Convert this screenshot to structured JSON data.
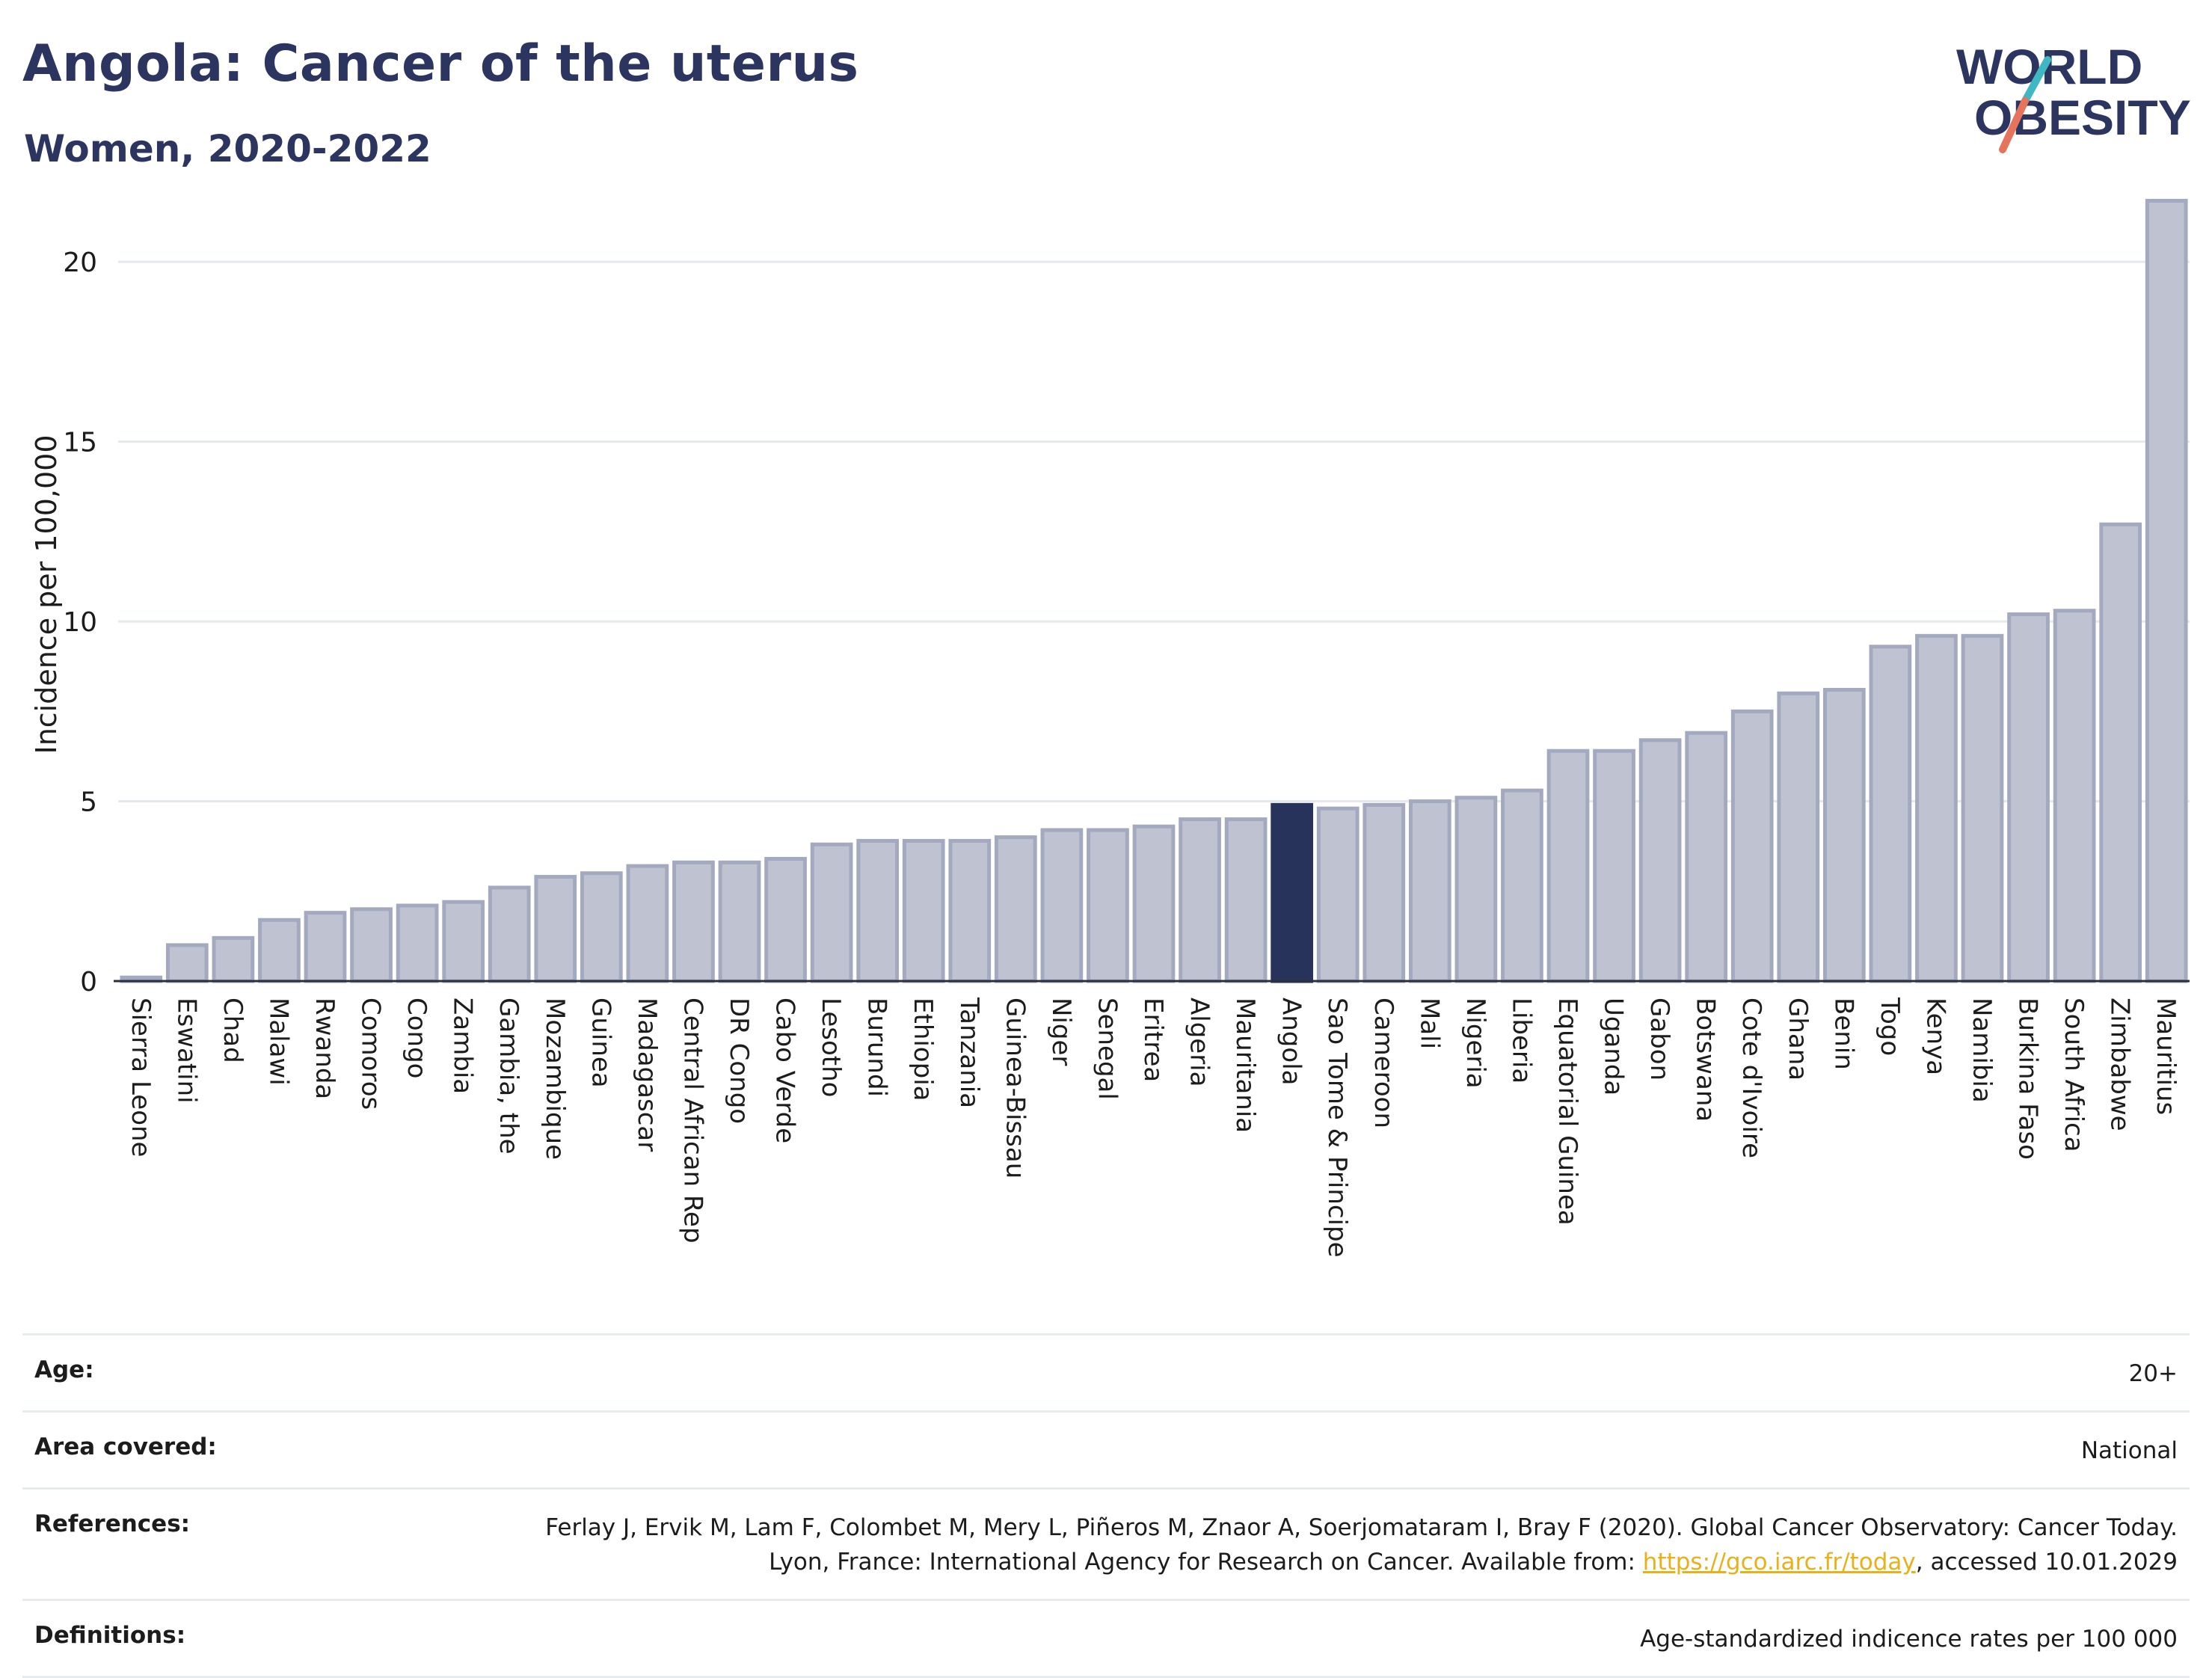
{
  "header": {
    "title": "Angola: Cancer of the uterus",
    "subtitle": "Women, 2020-2022"
  },
  "logo": {
    "line1": "WORLD",
    "line2": "OBESITY",
    "accent_colors": [
      "#3fb8c4",
      "#e6735c"
    ]
  },
  "colors": {
    "bar_fill": "#bfc3d1",
    "bar_stroke": "#a3a9bf",
    "highlight_fill": "#28335c",
    "grid": "#e5e8ed",
    "axis": "#2b3040",
    "text": "#26304f",
    "link": "#e8b019"
  },
  "chart_data": {
    "type": "bar",
    "title": "Angola: Cancer of the uterus",
    "subtitle": "Women, 2020-2022",
    "ylabel": "Incidence per 100,000",
    "xlabel": "",
    "ylim": [
      0,
      22
    ],
    "yticks": [
      0,
      5,
      10,
      15,
      20
    ],
    "grid": true,
    "highlight": "Angola",
    "categories": [
      "Sierra Leone",
      "Eswatini",
      "Chad",
      "Malawi",
      "Rwanda",
      "Comoros",
      "Congo",
      "Zambia",
      "Gambia, the",
      "Mozambique",
      "Guinea",
      "Madagascar",
      "Central African Rep",
      "DR Congo",
      "Cabo Verde",
      "Lesotho",
      "Burundi",
      "Ethiopia",
      "Tanzania",
      "Guinea-Bissau",
      "Niger",
      "Senegal",
      "Eritrea",
      "Algeria",
      "Mauritania",
      "Angola",
      "Sao Tome & Principe",
      "Cameroon",
      "Mali",
      "Nigeria",
      "Liberia",
      "Equatorial Guinea",
      "Uganda",
      "Gabon",
      "Botswana",
      "Cote d'Ivoire",
      "Ghana",
      "Benin",
      "Togo",
      "Kenya",
      "Namibia",
      "Burkina Faso",
      "South Africa",
      "Zimbabwe",
      "Mauritius"
    ],
    "values": [
      0.1,
      1.0,
      1.2,
      1.7,
      1.9,
      2.0,
      2.1,
      2.2,
      2.6,
      2.9,
      3.0,
      3.2,
      3.3,
      3.3,
      3.4,
      3.8,
      3.9,
      3.9,
      3.9,
      4.0,
      4.2,
      4.2,
      4.3,
      4.5,
      4.5,
      4.9,
      4.8,
      4.9,
      5.0,
      5.1,
      5.3,
      6.4,
      6.4,
      6.7,
      6.9,
      7.5,
      8.0,
      8.1,
      9.3,
      9.6,
      9.6,
      10.2,
      10.3,
      12.7,
      21.7
    ]
  },
  "meta": {
    "age_label": "Age:",
    "age_value": "20+",
    "area_label": "Area covered:",
    "area_value": "National",
    "references_label": "References:",
    "references_text_1": "Ferlay J, Ervik M, Lam F, Colombet M, Mery L, Piñeros M, Znaor A, Soerjomataram I, Bray F (2020). Global Cancer Observatory: Cancer Today. Lyon, France: International Agency for Research on Cancer. Available from: ",
    "references_link": "https://gco.iarc.fr/today",
    "references_text_2": ", accessed 10.01.2029",
    "definitions_label": "Definitions:",
    "definitions_value": "Age-standardized indicence rates per 100 000"
  }
}
